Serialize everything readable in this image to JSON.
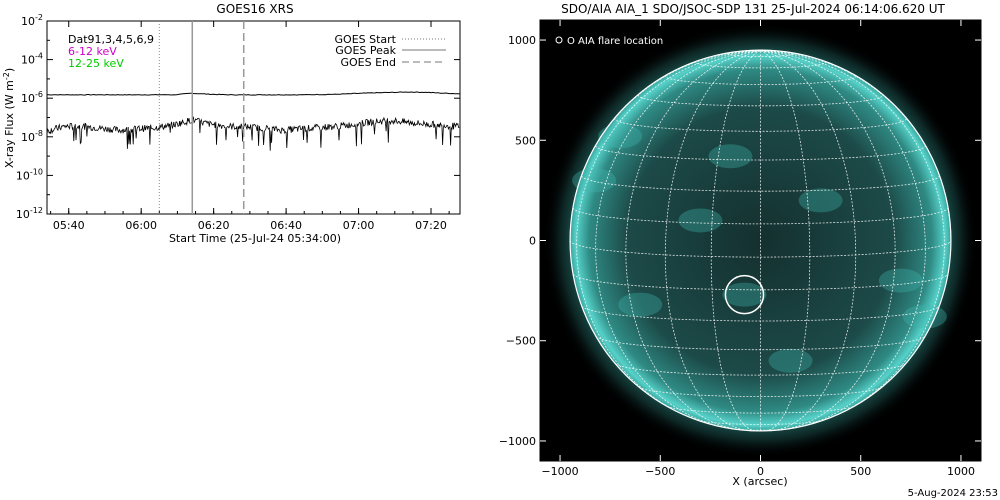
{
  "stamp": "5-Aug-2024 23:53",
  "chart_data": [
    {
      "type": "line",
      "title": "GOES16 XRS",
      "xlabel": "Start Time (25-Jul-24 05:34:00)",
      "ylabel_main": "X-ray Flux (W m",
      "ylabel_exp": "-2",
      "ylabel_close": ")",
      "yscale": "log",
      "ylim": [
        1e-12,
        0.01
      ],
      "xlim_minutes": [
        0,
        114
      ],
      "y_ticks": [
        {
          "base": "10",
          "exp": "-2",
          "value": 0.01
        },
        {
          "base": "10",
          "exp": "-4",
          "value": 0.0001
        },
        {
          "base": "10",
          "exp": "-6",
          "value": 1e-06
        },
        {
          "base": "10",
          "exp": "-8",
          "value": 1e-08
        },
        {
          "base": "10",
          "exp": "-10",
          "value": 1e-10
        },
        {
          "base": "10",
          "exp": "-12",
          "value": 1e-12
        }
      ],
      "x_ticks": [
        {
          "label": "05:40",
          "minute": 6
        },
        {
          "label": "06:00",
          "minute": 26
        },
        {
          "label": "06:20",
          "minute": 46
        },
        {
          "label": "06:40",
          "minute": 66
        },
        {
          "label": "07:00",
          "minute": 86
        },
        {
          "label": "07:20",
          "minute": 106
        }
      ],
      "legend_left": [
        {
          "text": "Dat91,3,4,5,6,9",
          "color": "#000000"
        },
        {
          "text": "6-12 keV",
          "color": "#cc00cc"
        },
        {
          "text": "12-25 keV",
          "color": "#00cc00"
        }
      ],
      "legend_right": [
        {
          "text": "GOES Start",
          "style": "dotted"
        },
        {
          "text": "GOES Peak",
          "style": "solid"
        },
        {
          "text": "GOES End",
          "style": "dashed"
        }
      ],
      "event_lines": {
        "start_minute": 31,
        "peak_minute": 40.1,
        "end_minute": 54.3
      },
      "series": [
        {
          "channel": "long",
          "x": [
            0,
            10,
            20,
            30,
            35,
            40,
            45,
            50,
            55,
            60,
            70,
            80,
            90,
            100,
            105,
            110,
            114
          ],
          "y": [
            1.5e-06,
            1.5e-06,
            1.5e-06,
            1.5e-06,
            1.5e-06,
            1.8e-06,
            1.6e-06,
            1.5e-06,
            1.5e-06,
            1.5e-06,
            1.5e-06,
            1.6e-06,
            1.9e-06,
            2.1e-06,
            2e-06,
            1.8e-06,
            1.7e-06
          ]
        },
        {
          "channel": "short",
          "x": [
            0,
            5,
            10,
            15,
            20,
            25,
            30,
            35,
            40,
            45,
            50,
            55,
            60,
            65,
            70,
            75,
            80,
            85,
            90,
            95,
            100,
            105,
            110,
            114
          ],
          "y": [
            2e-08,
            3.5e-08,
            3.5e-08,
            2.8e-08,
            2.2e-08,
            2.6e-08,
            3e-08,
            4.2e-08,
            7.5e-08,
            4.5e-08,
            3.5e-08,
            3.3e-08,
            2.8e-08,
            2.2e-08,
            2.6e-08,
            3e-08,
            3.5e-08,
            4.5e-08,
            6e-08,
            7e-08,
            5.5e-08,
            4.5e-08,
            4e-08,
            3.2e-08
          ]
        }
      ]
    },
    {
      "type": "image",
      "title": "SDO/AIA AIA_1 SDO/JSOC-SDP 131 25-Jul-2024 06:14:06.620 UT",
      "xlabel": "X (arcsec)",
      "ylabel": "",
      "xlim": [
        -1100,
        1100
      ],
      "ylim": [
        -1100,
        1100
      ],
      "x_ticks": [
        -1000,
        -500,
        0,
        500,
        1000
      ],
      "y_ticks": [
        -1000,
        -500,
        0,
        500,
        1000
      ],
      "legend": "O AIA flare location",
      "solar_radius_arcsec": 950,
      "flare_location_arcsec": {
        "x": -80,
        "y": -270
      },
      "flare_circle_radius_arcsec": 95,
      "colors": {
        "disk": "#1a3f40",
        "limb": "#4fd4cc",
        "background": "#000000",
        "grid": "#ffffff"
      }
    }
  ]
}
